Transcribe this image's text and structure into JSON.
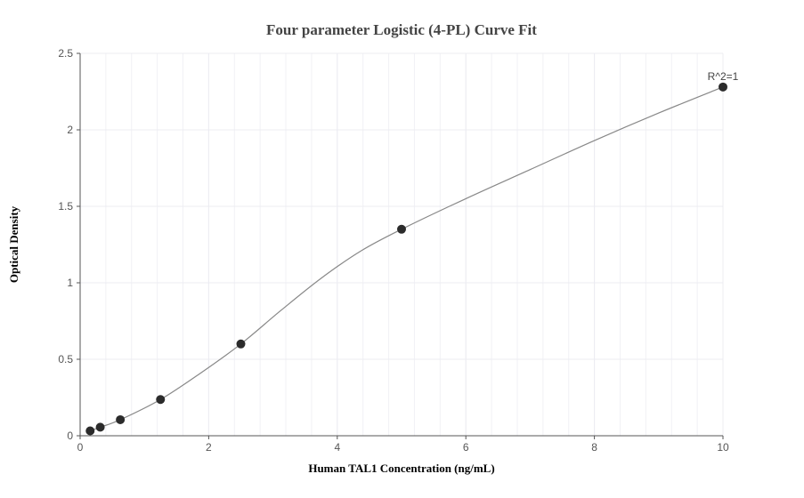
{
  "chart_data": {
    "type": "scatter",
    "title": "Four parameter Logistic (4-PL) Curve Fit",
    "xlabel": "Human TAL1 Concentration (ng/mL)",
    "ylabel": "Optical Density",
    "xlim": [
      0,
      10
    ],
    "ylim": [
      0,
      2.5
    ],
    "x_ticks": [
      "0",
      "2",
      "4",
      "6",
      "8",
      "10"
    ],
    "y_ticks": [
      "0",
      "0.5",
      "1",
      "1.5",
      "2",
      "2.5"
    ],
    "grid": true,
    "annotation": "R^2=1",
    "series": [
      {
        "points": [
          {
            "x": 0.156,
            "y": 0.032
          },
          {
            "x": 0.313,
            "y": 0.056
          },
          {
            "x": 0.625,
            "y": 0.105
          },
          {
            "x": 1.25,
            "y": 0.237
          },
          {
            "x": 2.5,
            "y": 0.6
          },
          {
            "x": 5,
            "y": 1.35
          },
          {
            "x": 10,
            "y": 2.28
          }
        ]
      }
    ],
    "fit_curve": {
      "x": [
        0.156,
        0.313,
        0.625,
        1.25,
        1.875,
        2.5,
        3.125,
        3.75,
        4.375,
        5,
        6,
        7,
        8,
        9,
        10
      ],
      "y": [
        0.032,
        0.056,
        0.105,
        0.237,
        0.41,
        0.6,
        0.82,
        1.03,
        1.21,
        1.35,
        1.55,
        1.74,
        1.93,
        2.11,
        2.28
      ]
    },
    "colors": {
      "marker": "#2b2b2b",
      "curve": "#888888",
      "grid": "#ececf2",
      "axis": "#555555"
    }
  }
}
